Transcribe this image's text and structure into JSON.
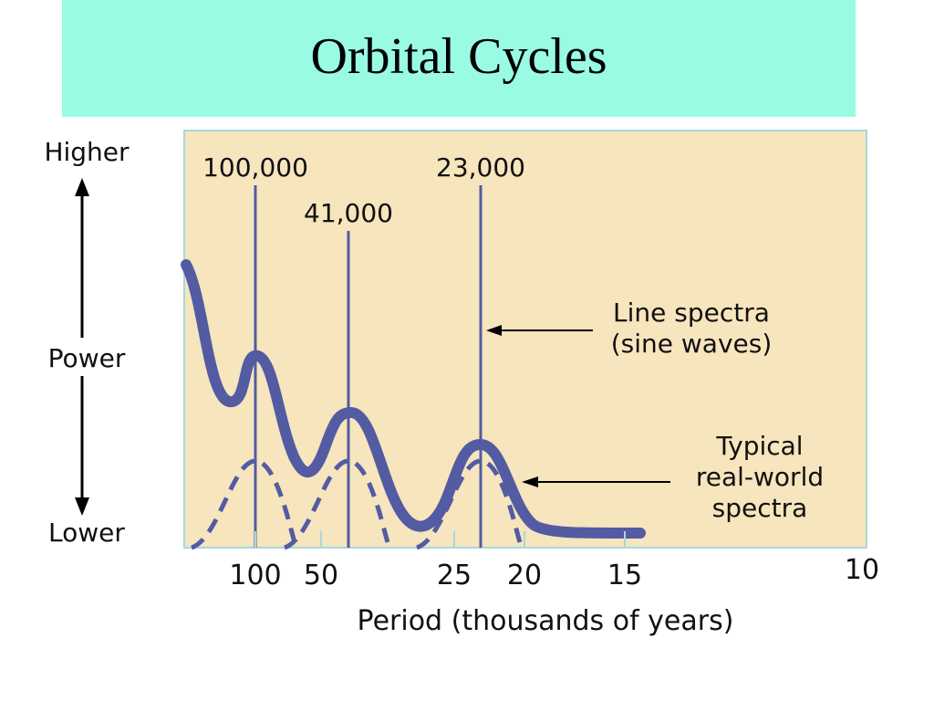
{
  "slide_title": "Orbital Cycles",
  "chart_data": {
    "type": "line",
    "xlabel": "Period (thousands of years)",
    "x_ticks": [
      {
        "label": "100",
        "period": 100
      },
      {
        "label": "50",
        "period": 50
      },
      {
        "label": "25",
        "period": 25
      },
      {
        "label": "20",
        "period": 20
      },
      {
        "label": "15",
        "period": 15
      },
      {
        "label": "10",
        "period": 10
      }
    ],
    "ylabel": "Power",
    "y_top_label": "Higher",
    "y_bottom_label": "Lower",
    "line_spectra": [
      {
        "label": "100,000",
        "period": 100000
      },
      {
        "label": "41,000",
        "period": 41000
      },
      {
        "label": "23,000",
        "period": 23000
      }
    ],
    "annotations": [
      {
        "key": "line",
        "lines": [
          "Line spectra",
          "(sine waves)"
        ]
      },
      {
        "key": "real",
        "lines": [
          "Typical",
          "real-world",
          "spectra"
        ]
      }
    ],
    "colors": {
      "plot_background": "#f6e5bd",
      "plot_border": "#a8d8dc",
      "spectrum": "#535ba3",
      "title_background": "#99fbe4"
    }
  }
}
